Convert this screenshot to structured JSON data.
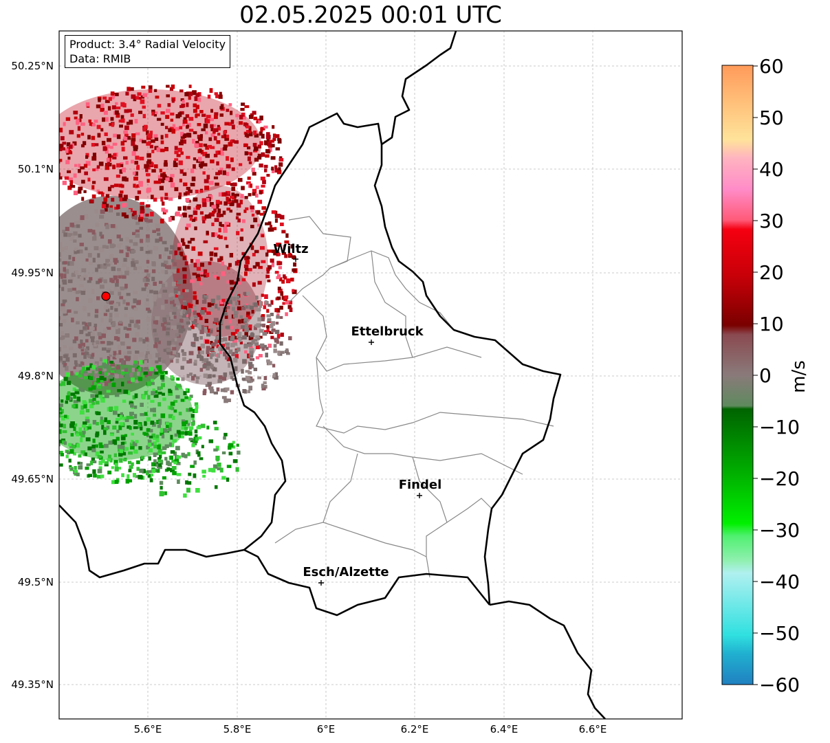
{
  "title": "02.05.2025 00:01 UTC",
  "info": {
    "product": "Product: 3.4° Radial Velocity",
    "source": "Data: RMIB"
  },
  "lat_ticks": [
    "50.25°N",
    "50.1°N",
    "49.95°N",
    "49.8°N",
    "49.65°N",
    "49.5°N",
    "49.35°N"
  ],
  "lon_ticks": [
    "5.6°E",
    "5.8°E",
    "6°E",
    "6.2°E",
    "6.4°E",
    "6.6°E"
  ],
  "cities": [
    {
      "name": "Wiltz",
      "lon": 5.93,
      "lat": 49.97
    },
    {
      "name": "Ettelbruck",
      "lon": 6.1,
      "lat": 49.85
    },
    {
      "name": "Findel",
      "lon": 6.21,
      "lat": 49.63
    },
    {
      "name": "Esch/Alzette",
      "lon": 5.99,
      "lat": 49.5
    }
  ],
  "radar_site": {
    "lon": 5.505,
    "lat": 49.915
  },
  "colorbar": {
    "label": "m/s",
    "ticks": [
      "60",
      "50",
      "40",
      "30",
      "20",
      "10",
      "0",
      "−10",
      "−20",
      "−30",
      "−40",
      "−50",
      "−60"
    ],
    "colors": [
      "#ff9a5a",
      "#ffc07a",
      "#ffe39a",
      "#ffb3c0",
      "#ff8cc8",
      "#ff5a78",
      "#f50010",
      "#c80008",
      "#7a0000",
      "#8a5560",
      "#7a7a7a",
      "#5e8a5e",
      "#006400",
      "#00b000",
      "#00f000",
      "#50f070",
      "#b0f0f0",
      "#40e0e0",
      "#2080c0"
    ]
  }
}
